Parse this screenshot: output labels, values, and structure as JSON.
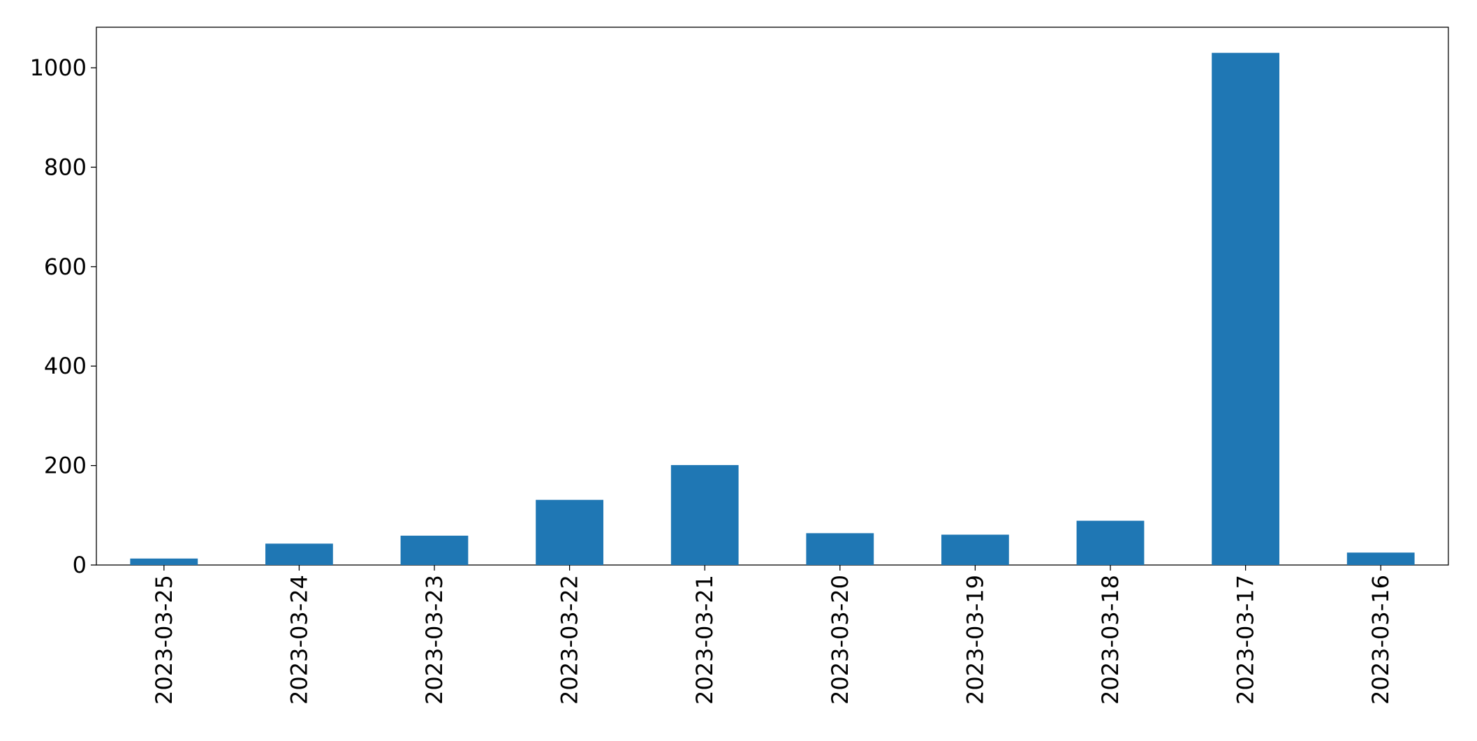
{
  "chart_data": {
    "type": "bar",
    "categories": [
      "2023-03-25",
      "2023-03-24",
      "2023-03-23",
      "2023-03-22",
      "2023-03-21",
      "2023-03-20",
      "2023-03-19",
      "2023-03-18",
      "2023-03-17",
      "2023-03-16"
    ],
    "values": [
      13,
      43,
      59,
      131,
      201,
      64,
      61,
      89,
      1030,
      25
    ],
    "color": "#1f77b4",
    "ylim": [
      0,
      1081.5
    ],
    "yticks": [
      0,
      200,
      400,
      600,
      800,
      1000
    ],
    "grid": false
  }
}
